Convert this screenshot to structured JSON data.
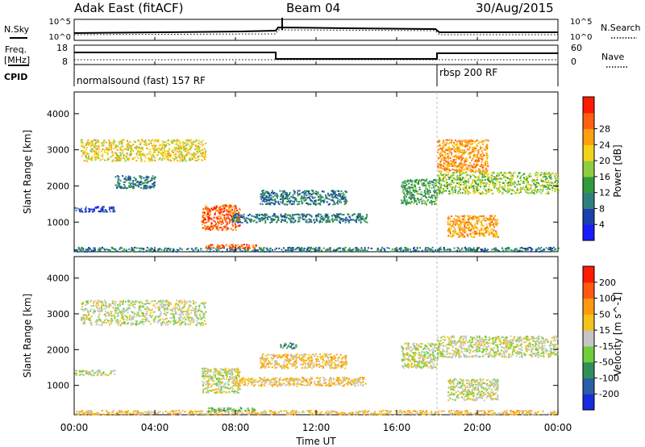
{
  "header": {
    "station": "Adak East (fitACF)",
    "beam": "Beam 04",
    "date": "30/Aug/2015"
  },
  "noise_panel": {
    "left_label": "N.Sky",
    "right_label": "N.Search",
    "left_ticks": [
      "10^5",
      "10^0"
    ],
    "right_ticks": [
      "10^5",
      "10^0"
    ]
  },
  "freq_panel": {
    "left_label": "Freq.",
    "left_unit": "[MHz]",
    "right_label": "Nave",
    "left_ticks": [
      "18",
      "8"
    ],
    "right_ticks": [
      "60",
      "0"
    ]
  },
  "cpid_panel": {
    "label": "CPID",
    "segments": [
      {
        "name": "normalsound (fast) 157 RF",
        "start_hour": 0
      },
      {
        "name": "rbsp 200 RF",
        "start_hour": 18
      }
    ]
  },
  "x_axis": {
    "label": "Time UT",
    "ticks": [
      "00:00",
      "04:00",
      "08:00",
      "12:00",
      "16:00",
      "20:00",
      "00:00"
    ],
    "range_hours": [
      0,
      24
    ]
  },
  "chart_data": [
    {
      "type": "heatmap",
      "title": "",
      "ylabel": "Slant Range [km]",
      "yticks": [
        1000,
        2000,
        3000,
        4000
      ],
      "ylim": [
        180,
        4600
      ],
      "xlim": [
        0,
        24
      ],
      "colorbar": {
        "label": "Power [dB]",
        "ticks": [
          "4",
          "8",
          "12",
          "16",
          "20",
          "24",
          "28"
        ],
        "colors": [
          "#1a1aff",
          "#1c3fae",
          "#2f7f80",
          "#2f9b3a",
          "#8fcc3f",
          "#f3d21a",
          "#ffa010",
          "#ff6010",
          "#ff1a00"
        ]
      },
      "regions": [
        {
          "x": [
            0.3,
            6.5
          ],
          "y": [
            2700,
            3300
          ],
          "level": 5
        },
        {
          "x": [
            2.0,
            4.0
          ],
          "y": [
            1950,
            2300
          ],
          "level": 2
        },
        {
          "x": [
            0.0,
            2.0
          ],
          "y": [
            1300,
            1450
          ],
          "level": 1
        },
        {
          "x": [
            6.3,
            8.2
          ],
          "y": [
            800,
            1500
          ],
          "level": 7
        },
        {
          "x": [
            7.8,
            14.5
          ],
          "y": [
            1000,
            1250
          ],
          "level": 2
        },
        {
          "x": [
            9.2,
            13.5
          ],
          "y": [
            1500,
            1900
          ],
          "level": 2
        },
        {
          "x": [
            16.2,
            18.0
          ],
          "y": [
            1500,
            2200
          ],
          "level": 3
        },
        {
          "x": [
            18.0,
            20.5
          ],
          "y": [
            2400,
            3300
          ],
          "level": 6
        },
        {
          "x": [
            18.0,
            24.0
          ],
          "y": [
            1800,
            2400
          ],
          "level": 4
        },
        {
          "x": [
            18.5,
            21.0
          ],
          "y": [
            600,
            1200
          ],
          "level": 6
        },
        {
          "x": [
            0.0,
            24.0
          ],
          "y": [
            200,
            320
          ],
          "level": 2
        },
        {
          "x": [
            6.5,
            9.0
          ],
          "y": [
            280,
            400
          ],
          "level": 7
        }
      ]
    },
    {
      "type": "heatmap",
      "title": "",
      "ylabel": "Slant Range [km]",
      "yticks": [
        1000,
        2000,
        3000,
        4000
      ],
      "ylim": [
        180,
        4600
      ],
      "xlim": [
        0,
        24
      ],
      "colorbar": {
        "label": "Velocity [m s^-1]",
        "ticks": [
          "200",
          "100",
          "50",
          "15",
          "-15",
          "-50",
          "-100",
          "-200"
        ],
        "colors": [
          "#1a2adf",
          "#2a5fa8",
          "#2f8f5a",
          "#6fcf3a",
          "#c6c6c6",
          "#f3c31a",
          "#ff9a10",
          "#ff5a10",
          "#ff1a00"
        ]
      },
      "regions": [
        {
          "x": [
            0.3,
            6.5
          ],
          "y": [
            2700,
            3400
          ],
          "level": 4
        },
        {
          "x": [
            0.0,
            2.0
          ],
          "y": [
            1300,
            1450
          ],
          "level": 4
        },
        {
          "x": [
            6.3,
            8.2
          ],
          "y": [
            800,
            1500
          ],
          "level": 4
        },
        {
          "x": [
            7.8,
            14.5
          ],
          "y": [
            1000,
            1250
          ],
          "level": 5
        },
        {
          "x": [
            9.2,
            13.5
          ],
          "y": [
            1500,
            1900
          ],
          "level": 5
        },
        {
          "x": [
            10.2,
            11.0
          ],
          "y": [
            2050,
            2200
          ],
          "level": 2
        },
        {
          "x": [
            16.2,
            18.0
          ],
          "y": [
            1500,
            2200
          ],
          "level": 4
        },
        {
          "x": [
            18.0,
            24.0
          ],
          "y": [
            1800,
            2400
          ],
          "level": 4
        },
        {
          "x": [
            18.5,
            21.0
          ],
          "y": [
            600,
            1200
          ],
          "level": 4
        },
        {
          "x": [
            0.0,
            24.0
          ],
          "y": [
            200,
            320
          ],
          "level": 5
        },
        {
          "x": [
            6.5,
            9.0
          ],
          "y": [
            280,
            400
          ],
          "level": 3
        }
      ]
    }
  ]
}
